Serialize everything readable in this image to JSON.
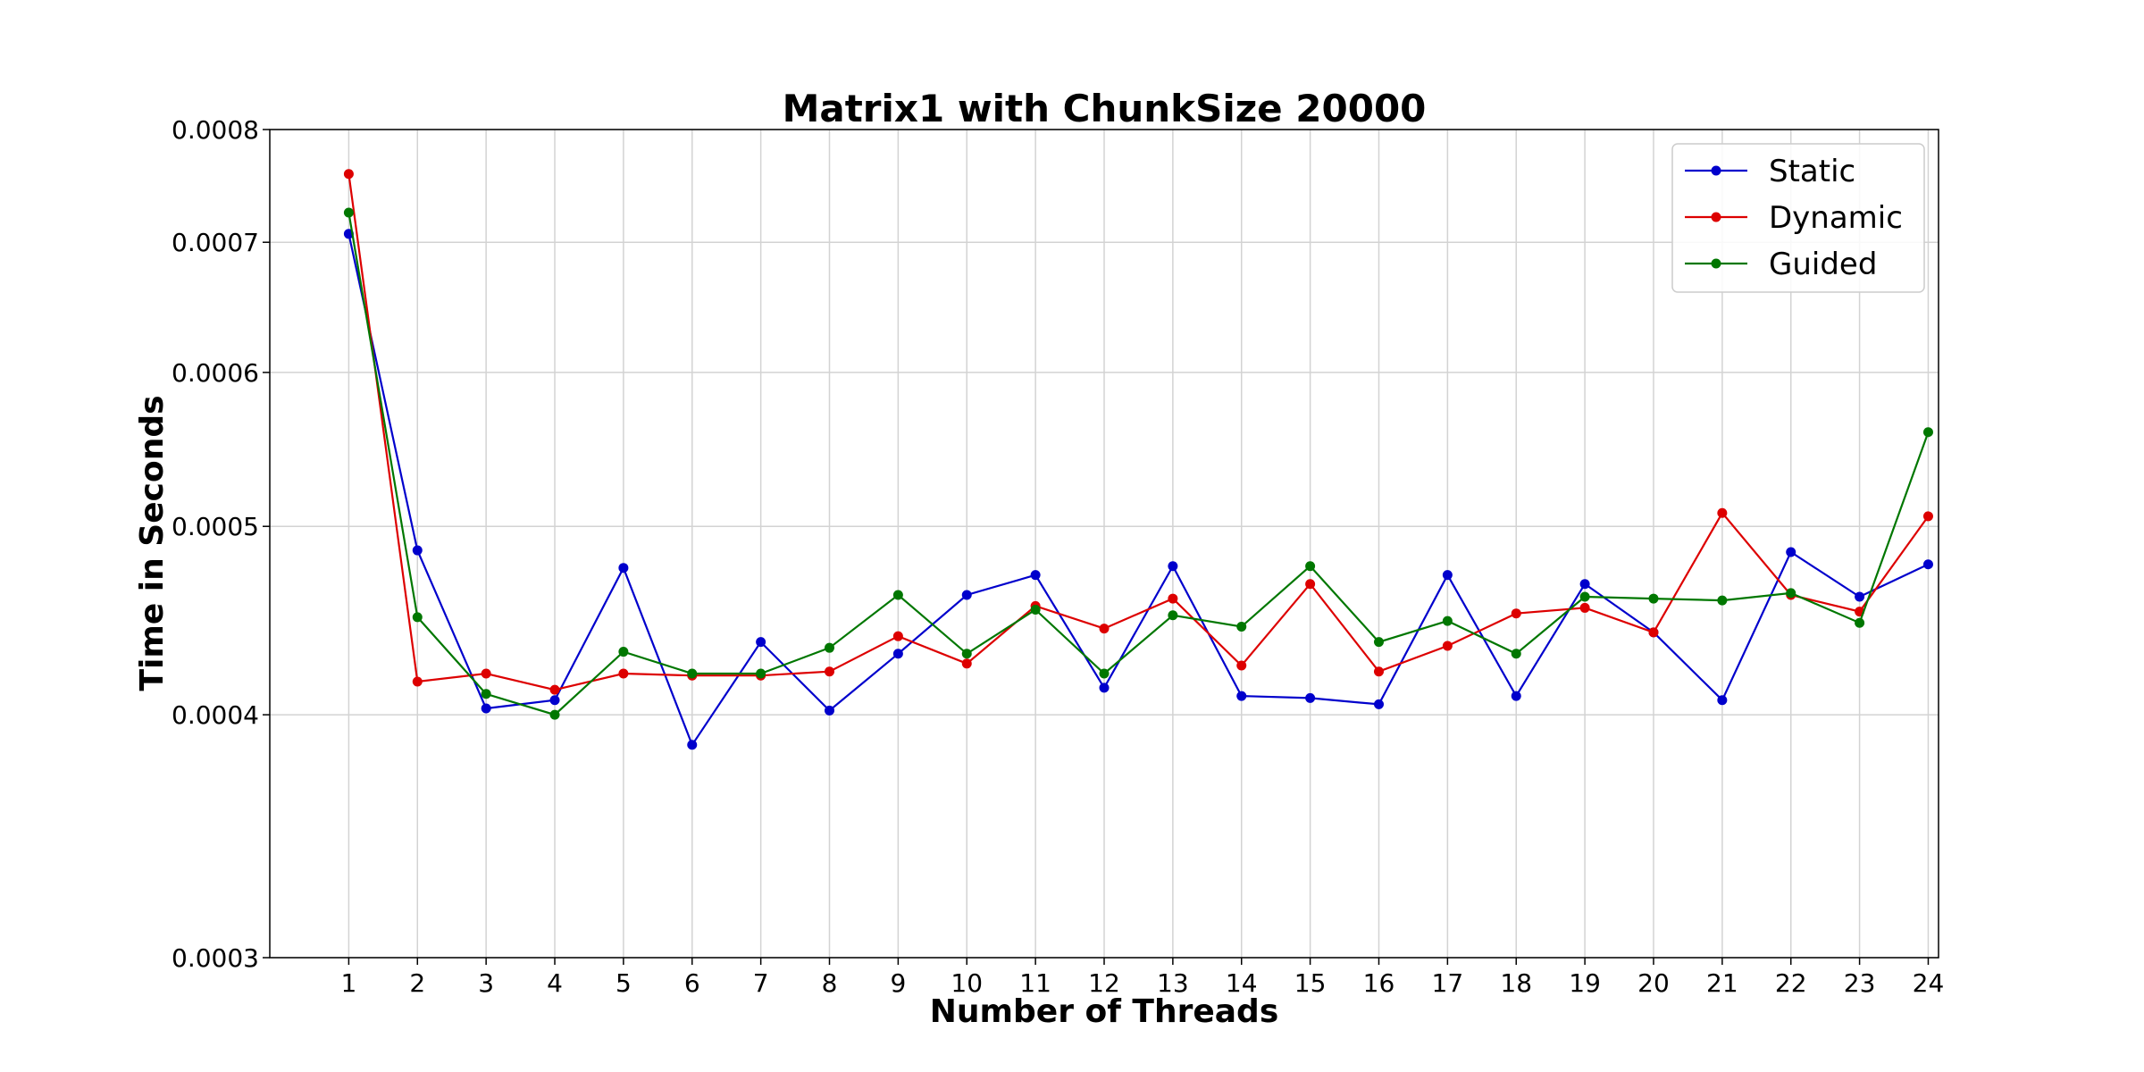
{
  "chart_data": {
    "type": "line",
    "title": "Matrix1 with ChunkSize 20000",
    "xlabel": "Number of Threads",
    "ylabel": "Time in Seconds",
    "yscale": "log",
    "ylim": [
      0.0003,
      0.0008
    ],
    "xlim": [
      -0.15,
      24.15
    ],
    "grid": true,
    "legend_position": "top-right",
    "x": [
      1,
      2,
      3,
      4,
      5,
      6,
      7,
      8,
      9,
      10,
      11,
      12,
      13,
      14,
      15,
      16,
      17,
      18,
      19,
      20,
      21,
      22,
      23,
      24
    ],
    "yticks": [
      "0.0003",
      "0.0004",
      "0.0005",
      "0.0006",
      "0.0007",
      "0.0008"
    ],
    "ytick_values": [
      0.0003,
      0.0004,
      0.0005,
      0.0006,
      0.0007,
      0.0008
    ],
    "xticks": [
      "1",
      "2",
      "3",
      "4",
      "5",
      "6",
      "7",
      "8",
      "9",
      "10",
      "11",
      "12",
      "13",
      "14",
      "15",
      "16",
      "17",
      "18",
      "19",
      "20",
      "21",
      "22",
      "23",
      "24"
    ],
    "series": [
      {
        "name": "Static",
        "color": "#0000cc",
        "values": [
          0.000707,
          0.000486,
          0.000403,
          0.000407,
          0.000476,
          0.000386,
          0.000436,
          0.000402,
          0.00043,
          0.000461,
          0.000472,
          0.000413,
          0.000477,
          0.000409,
          0.000408,
          0.000405,
          0.000472,
          0.000409,
          0.000467,
          0.000441,
          0.000407,
          0.000485,
          0.00046,
          0.000478
        ]
      },
      {
        "name": "Dynamic",
        "color": "#dd0000",
        "values": [
          0.000759,
          0.000416,
          0.00042,
          0.000412,
          0.00042,
          0.000419,
          0.000419,
          0.000421,
          0.000439,
          0.000425,
          0.000455,
          0.000443,
          0.000459,
          0.000424,
          0.000467,
          0.000421,
          0.000434,
          0.000451,
          0.000454,
          0.000441,
          0.000508,
          0.000461,
          0.000452,
          0.000506
        ]
      },
      {
        "name": "Guided",
        "color": "#007700",
        "values": [
          0.000725,
          0.000449,
          0.00041,
          0.0004,
          0.000431,
          0.00042,
          0.00042,
          0.000433,
          0.000461,
          0.00043,
          0.000453,
          0.00042,
          0.00045,
          0.000444,
          0.000477,
          0.000436,
          0.000447,
          0.00043,
          0.00046,
          0.000459,
          0.000458,
          0.000462,
          0.000446,
          0.000559
        ]
      }
    ]
  }
}
